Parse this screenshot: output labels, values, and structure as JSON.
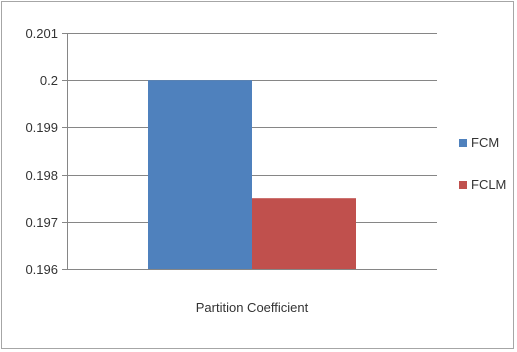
{
  "chart_data": {
    "type": "bar",
    "categories": [
      "Partition Coefficient"
    ],
    "series": [
      {
        "name": "FCM",
        "values": [
          0.2
        ],
        "color": "#4f81bd"
      },
      {
        "name": "FCLM",
        "values": [
          0.1975
        ],
        "color": "#c0504d"
      }
    ],
    "ylim": [
      0.196,
      0.201
    ],
    "yticks": [
      "0.196",
      "0.197",
      "0.198",
      "0.199",
      "0.2",
      "0.201"
    ],
    "grid": true,
    "legend": "right"
  }
}
